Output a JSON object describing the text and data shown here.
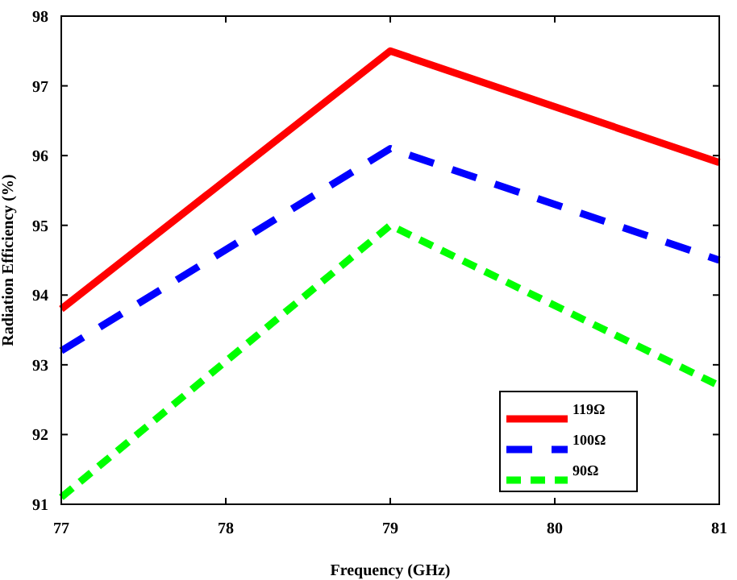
{
  "chart_data": {
    "type": "line",
    "xlabel": "Frequency (GHz)",
    "ylabel": "Radiation Efficiency (%)",
    "x": [
      77,
      79,
      81
    ],
    "series": [
      {
        "name": "119Ω",
        "color": "#ff0000",
        "line_style": "solid",
        "values": [
          93.8,
          97.5,
          95.9
        ]
      },
      {
        "name": "100Ω",
        "color": "#0000ff",
        "line_style": "dashed",
        "values": [
          93.2,
          96.1,
          94.5
        ]
      },
      {
        "name": "90Ω",
        "color": "#00ff00",
        "line_style": "dotted",
        "values": [
          91.1,
          95.0,
          92.7
        ]
      }
    ],
    "xlim": [
      77,
      81
    ],
    "xticks": [
      77,
      78,
      79,
      80,
      81
    ],
    "ylim": [
      91,
      98
    ],
    "yticks": [
      91,
      92,
      93,
      94,
      95,
      96,
      97,
      98
    ],
    "grid": false,
    "legend": "bottom right"
  }
}
